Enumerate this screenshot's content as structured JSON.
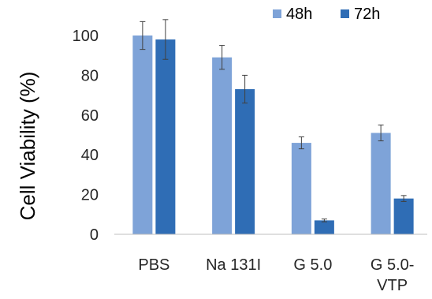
{
  "chart_data": {
    "type": "bar",
    "title": "",
    "xlabel": "",
    "ylabel": "Cell Viability (%)",
    "ylim": [
      0,
      100
    ],
    "yticks": [
      0,
      20,
      40,
      60,
      80,
      100
    ],
    "grid": false,
    "legend_position": "top-right",
    "categories": [
      [
        "PBS"
      ],
      [
        "Na 131I"
      ],
      [
        "G 5.0"
      ],
      [
        "G 5.0-",
        "VTP"
      ]
    ],
    "series": [
      {
        "name": "48h",
        "color": "#7ea3d8",
        "values": [
          100,
          89,
          46,
          51
        ],
        "errors": [
          7,
          6,
          3,
          4
        ]
      },
      {
        "name": "72h",
        "color": "#2f6db5",
        "values": [
          98,
          73,
          7,
          18
        ],
        "errors": [
          10,
          7,
          0.7,
          1.5
        ]
      }
    ]
  }
}
